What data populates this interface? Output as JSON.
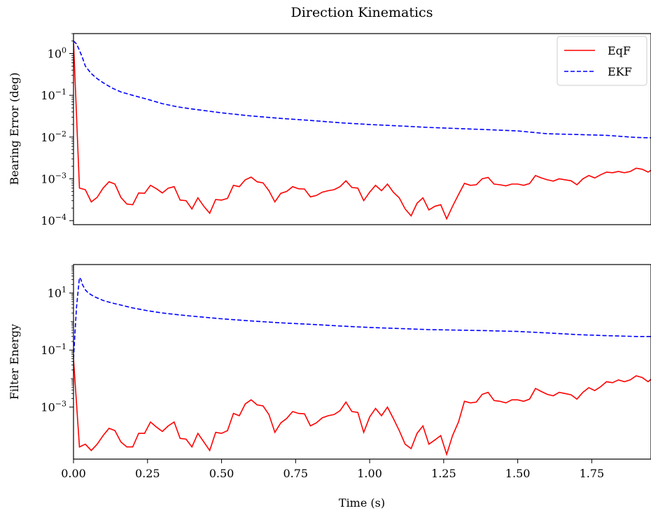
{
  "figure": {
    "title": "Direction Kinematics",
    "xlabel": "Time (s)"
  },
  "chart_data": [
    {
      "type": "line",
      "title": "Direction Kinematics",
      "ylabel": "Bearing Error (deg)",
      "yscale": "log",
      "xlim": [
        0.0,
        1.95
      ],
      "ylim": [
        8e-05,
        3.0
      ],
      "xticks": [
        "0.00",
        "0.25",
        "0.50",
        "0.75",
        "1.00",
        "1.25",
        "1.50",
        "1.75"
      ],
      "ytick_values": [
        0.0001,
        0.001,
        0.01,
        0.1,
        1
      ],
      "yticks": [
        {
          "base": "10",
          "exp": "−4"
        },
        {
          "base": "10",
          "exp": "−3"
        },
        {
          "base": "10",
          "exp": "−2"
        },
        {
          "base": "10",
          "exp": "−1"
        },
        {
          "base": "10",
          "exp": "0"
        }
      ],
      "legend": {
        "position": "top-right",
        "entries": [
          {
            "label": "EqF",
            "color": "#ff0000",
            "style": "solid"
          },
          {
            "label": "EKF",
            "color": "#0000ff",
            "style": "dashed"
          }
        ]
      },
      "series": [
        {
          "name": "EqF",
          "color": "#ff0000",
          "style": "solid",
          "x": [
            0.0,
            0.02,
            0.04,
            0.06,
            0.08,
            0.1,
            0.12,
            0.14,
            0.16,
            0.18,
            0.2,
            0.22,
            0.24,
            0.26,
            0.28,
            0.3,
            0.32,
            0.34,
            0.36,
            0.38,
            0.4,
            0.42,
            0.44,
            0.46,
            0.48,
            0.5,
            0.52,
            0.54,
            0.56,
            0.58,
            0.6,
            0.62,
            0.64,
            0.66,
            0.68,
            0.7,
            0.72,
            0.74,
            0.76,
            0.78,
            0.8,
            0.82,
            0.84,
            0.86,
            0.88,
            0.9,
            0.92,
            0.94,
            0.96,
            0.98,
            1.0,
            1.02,
            1.04,
            1.06,
            1.08,
            1.1,
            1.12,
            1.14,
            1.16,
            1.18,
            1.2,
            1.22,
            1.24,
            1.26,
            1.28,
            1.3,
            1.32,
            1.34,
            1.36,
            1.38,
            1.4,
            1.42,
            1.44,
            1.46,
            1.48,
            1.5,
            1.52,
            1.54,
            1.56,
            1.58,
            1.6,
            1.62,
            1.64,
            1.66,
            1.68,
            1.7,
            1.72,
            1.74,
            1.76,
            1.78,
            1.8,
            1.82,
            1.84,
            1.86,
            1.88,
            1.9,
            1.92,
            1.94,
            1.95
          ],
          "y": [
            2.0,
            0.0006,
            0.00055,
            0.00028,
            0.00036,
            0.0006,
            0.00085,
            0.00075,
            0.00036,
            0.00025,
            0.00024,
            0.00046,
            0.00045,
            0.0007,
            0.00058,
            0.00046,
            0.0006,
            0.00065,
            0.00031,
            0.0003,
            0.00019,
            0.00035,
            0.00022,
            0.00015,
            0.00032,
            0.00031,
            0.00034,
            0.0007,
            0.00065,
            0.00095,
            0.0011,
            0.00085,
            0.0008,
            0.00052,
            0.00028,
            0.00045,
            0.0005,
            0.00065,
            0.00058,
            0.00057,
            0.00037,
            0.0004,
            0.00048,
            0.00052,
            0.00055,
            0.00065,
            0.0009,
            0.00062,
            0.0006,
            0.0003,
            0.00048,
            0.0007,
            0.00052,
            0.00075,
            0.00048,
            0.00035,
            0.00019,
            0.00013,
            0.00026,
            0.00035,
            0.00018,
            0.00022,
            0.00024,
            0.00011,
            0.00022,
            0.00042,
            0.00078,
            0.0007,
            0.00072,
            0.001,
            0.00108,
            0.00075,
            0.00072,
            0.00068,
            0.00075,
            0.00075,
            0.0007,
            0.00077,
            0.0012,
            0.00105,
            0.00095,
            0.00088,
            0.001,
            0.00095,
            0.0009,
            0.00072,
            0.001,
            0.0012,
            0.00105,
            0.00125,
            0.00145,
            0.0014,
            0.0015,
            0.0014,
            0.0015,
            0.0018,
            0.0017,
            0.00145,
            0.0016
          ]
        },
        {
          "name": "EKF",
          "color": "#0000ff",
          "style": "dashed",
          "x": [
            0.0,
            0.01,
            0.02,
            0.03,
            0.04,
            0.06,
            0.08,
            0.1,
            0.13,
            0.16,
            0.2,
            0.25,
            0.3,
            0.35,
            0.4,
            0.5,
            0.6,
            0.7,
            0.8,
            0.9,
            1.0,
            1.1,
            1.2,
            1.3,
            1.4,
            1.5,
            1.6,
            1.7,
            1.8,
            1.9,
            1.95
          ],
          "y": [
            2.0,
            1.7,
            1.2,
            0.8,
            0.5,
            0.33,
            0.25,
            0.2,
            0.15,
            0.12,
            0.1,
            0.08,
            0.063,
            0.053,
            0.047,
            0.038,
            0.032,
            0.028,
            0.025,
            0.022,
            0.02,
            0.0185,
            0.017,
            0.016,
            0.015,
            0.014,
            0.012,
            0.0115,
            0.011,
            0.0098,
            0.0096
          ]
        }
      ]
    },
    {
      "type": "line",
      "ylabel": "Filter Energy",
      "yscale": "log",
      "xlim": [
        0.0,
        1.95
      ],
      "ylim": [
        1.5e-05,
        100.0
      ],
      "xticks": [
        "0.00",
        "0.25",
        "0.50",
        "0.75",
        "1.00",
        "1.25",
        "1.50",
        "1.75"
      ],
      "ytick_values": [
        0.001,
        0.1,
        10
      ],
      "yticks": [
        {
          "base": "10",
          "exp": "−3"
        },
        {
          "base": "10",
          "exp": "−1"
        },
        {
          "base": "10",
          "exp": "1"
        }
      ],
      "series": [
        {
          "name": "EqF",
          "color": "#ff0000",
          "style": "solid",
          "x": [
            0.0,
            0.02,
            0.04,
            0.06,
            0.08,
            0.1,
            0.12,
            0.14,
            0.16,
            0.18,
            0.2,
            0.22,
            0.24,
            0.26,
            0.28,
            0.3,
            0.32,
            0.34,
            0.36,
            0.38,
            0.4,
            0.42,
            0.44,
            0.46,
            0.48,
            0.5,
            0.52,
            0.54,
            0.56,
            0.58,
            0.6,
            0.62,
            0.64,
            0.66,
            0.68,
            0.7,
            0.72,
            0.74,
            0.76,
            0.78,
            0.8,
            0.82,
            0.84,
            0.86,
            0.88,
            0.9,
            0.92,
            0.94,
            0.96,
            0.98,
            1.0,
            1.02,
            1.04,
            1.06,
            1.08,
            1.1,
            1.12,
            1.14,
            1.16,
            1.18,
            1.2,
            1.22,
            1.24,
            1.26,
            1.28,
            1.3,
            1.32,
            1.34,
            1.36,
            1.38,
            1.4,
            1.42,
            1.44,
            1.46,
            1.48,
            1.5,
            1.52,
            1.54,
            1.56,
            1.58,
            1.6,
            1.62,
            1.64,
            1.66,
            1.68,
            1.7,
            1.72,
            1.74,
            1.76,
            1.78,
            1.8,
            1.82,
            1.84,
            1.86,
            1.88,
            1.9,
            1.92,
            1.94,
            1.95
          ],
          "y": [
            0.05,
            4e-05,
            5e-05,
            3e-05,
            5e-05,
            0.0001,
            0.00018,
            0.00015,
            6e-05,
            4e-05,
            4e-05,
            0.00012,
            0.00012,
            0.0003,
            0.0002,
            0.00014,
            0.00022,
            0.0003,
            8e-05,
            7.5e-05,
            4e-05,
            0.00012,
            6e-05,
            3e-05,
            0.00013,
            0.00012,
            0.00015,
            0.0006,
            0.0005,
            0.0013,
            0.0018,
            0.0012,
            0.0011,
            0.00055,
            0.00013,
            0.00028,
            0.0004,
            0.0007,
            0.0006,
            0.00058,
            0.00022,
            0.00028,
            0.00042,
            0.0005,
            0.00055,
            0.00075,
            0.0015,
            0.0007,
            0.00065,
            0.00013,
            0.00045,
            0.0009,
            0.0005,
            0.001,
            0.0004,
            0.00015,
            5e-05,
            3.5e-05,
            0.00012,
            0.00022,
            5e-05,
            7e-05,
            0.0001,
            2.2e-05,
            0.0001,
            0.0003,
            0.0016,
            0.0014,
            0.0015,
            0.0028,
            0.0033,
            0.0017,
            0.0016,
            0.0014,
            0.0018,
            0.0018,
            0.0016,
            0.0019,
            0.0045,
            0.0035,
            0.0028,
            0.0025,
            0.0033,
            0.003,
            0.0027,
            0.0019,
            0.0033,
            0.0048,
            0.0038,
            0.0052,
            0.0078,
            0.0072,
            0.009,
            0.0078,
            0.009,
            0.0125,
            0.011,
            0.0078,
            0.0095
          ]
        },
        {
          "name": "EKF",
          "color": "#0000ff",
          "style": "dashed",
          "x": [
            0.0,
            0.01,
            0.02,
            0.025,
            0.03,
            0.04,
            0.05,
            0.07,
            0.1,
            0.13,
            0.16,
            0.2,
            0.25,
            0.3,
            0.35,
            0.4,
            0.5,
            0.6,
            0.7,
            0.8,
            0.9,
            1.0,
            1.1,
            1.2,
            1.3,
            1.4,
            1.5,
            1.6,
            1.7,
            1.8,
            1.9,
            1.95
          ],
          "y": [
            0.05,
            3.0,
            35.0,
            30.0,
            20.0,
            13.0,
            10.0,
            7.5,
            5.5,
            4.5,
            3.8,
            3.0,
            2.4,
            2.0,
            1.75,
            1.55,
            1.25,
            1.05,
            0.9,
            0.8,
            0.7,
            0.62,
            0.57,
            0.52,
            0.5,
            0.48,
            0.45,
            0.4,
            0.35,
            0.32,
            0.3,
            0.3
          ]
        }
      ]
    }
  ]
}
